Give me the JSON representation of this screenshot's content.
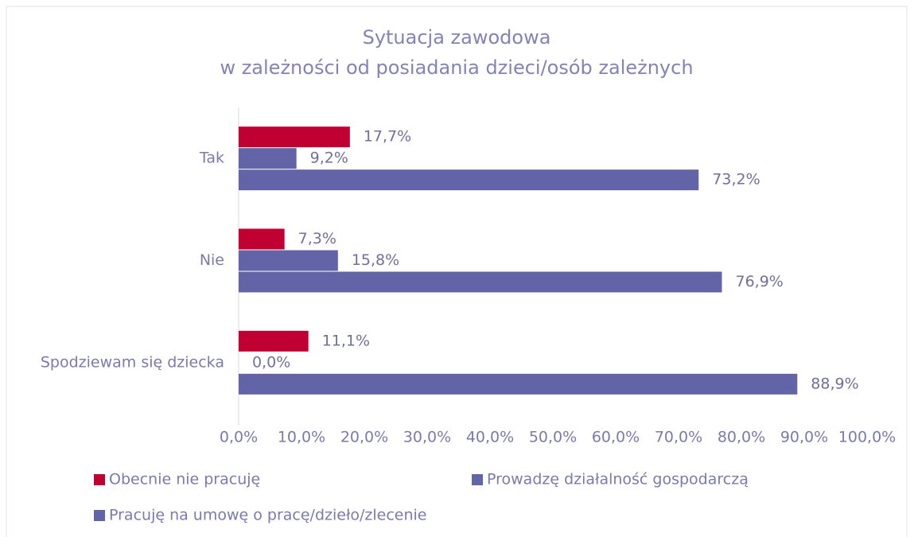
{
  "chart_data": {
    "type": "bar",
    "orientation": "horizontal",
    "title": "Sytuacja zawodowa",
    "subtitle": "w zależności od posiadania dzieci/osób zależnych",
    "categories": [
      "Tak",
      "Nie",
      "Spodziewam się dziecka"
    ],
    "series": [
      {
        "name": "Obecnie nie pracuję",
        "color": "#c00030",
        "values": [
          17.7,
          7.3,
          11.1
        ],
        "value_labels": [
          "17,7%",
          "7,3%",
          "11,1%"
        ]
      },
      {
        "name": "Prowadzę działalność gospodarczą",
        "color": "#6264a7",
        "values": [
          9.2,
          15.8,
          0.0
        ],
        "value_labels": [
          "9,2%",
          "15,8%",
          "0,0%"
        ]
      },
      {
        "name": "Pracuję na umowę o pracę/dzieło/zlecenie",
        "color": "#6264a7",
        "values": [
          73.2,
          76.9,
          88.9
        ],
        "value_labels": [
          "73,2%",
          "76,9%",
          "88,9%"
        ]
      }
    ],
    "xlim": [
      0,
      100
    ],
    "xticks": [
      {
        "value": 0,
        "label": "0,0%"
      },
      {
        "value": 10,
        "label": "10,0%"
      },
      {
        "value": 20,
        "label": "20,0%"
      },
      {
        "value": 30,
        "label": "30,0%"
      },
      {
        "value": 40,
        "label": "40,0%"
      },
      {
        "value": 50,
        "label": "50,0%"
      },
      {
        "value": 60,
        "label": "60,0%"
      },
      {
        "value": 70,
        "label": "70,0%"
      },
      {
        "value": 80,
        "label": "80,0%"
      },
      {
        "value": 90,
        "label": "90,0%"
      },
      {
        "value": 100,
        "label": "100,0%"
      }
    ],
    "grid": false,
    "legend": "bottom-left"
  }
}
